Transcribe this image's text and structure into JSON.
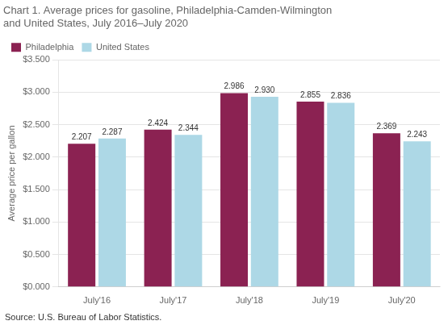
{
  "chart_data": {
    "type": "bar",
    "title": "Chart 1. Average prices for gasoline, Philadelphia-Camden-Wilmington\nand United States, July 2016–July 2020",
    "ylabel": "Average price per gallon",
    "annotations": [
      "Source: U.S. Bureau of Labor Statistics."
    ],
    "categories": [
      "July'16",
      "July'17",
      "July'18",
      "July'19",
      "July'20"
    ],
    "series": [
      {
        "name": "Philadelphia",
        "color": "#8B2252",
        "values": [
          2.207,
          2.424,
          2.986,
          2.855,
          2.369
        ],
        "value_labels": [
          "2.207",
          "2.424",
          "2.986",
          "2.855",
          "2.369"
        ]
      },
      {
        "name": "United States",
        "color": "#ADD8E6",
        "values": [
          2.287,
          2.344,
          2.93,
          2.836,
          2.243
        ],
        "value_labels": [
          "2.287",
          "2.344",
          "2.930",
          "2.836",
          "2.243"
        ]
      }
    ],
    "ylim": [
      0.0,
      3.5
    ],
    "yticks": [
      {
        "value": 0.0,
        "label": "$0.000"
      },
      {
        "value": 0.5,
        "label": "$0.500"
      },
      {
        "value": 1.0,
        "label": "$1.000"
      },
      {
        "value": 1.5,
        "label": "$1.500"
      },
      {
        "value": 2.0,
        "label": "$2.000"
      },
      {
        "value": 2.5,
        "label": "$2.500"
      },
      {
        "value": 3.0,
        "label": "$3.000"
      },
      {
        "value": 3.5,
        "label": "$3.500"
      }
    ],
    "grid": true,
    "legend": "upper left",
    "data_labels": true
  }
}
